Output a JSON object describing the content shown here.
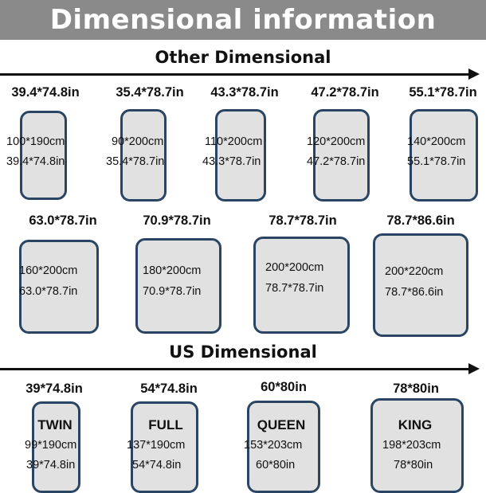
{
  "header": {
    "title": "Dimensional information"
  },
  "other": {
    "title": "Other Dimensional",
    "items": [
      {
        "label": "39.4*74.8in",
        "cm": "100*190cm",
        "in": "39.4*74.8in"
      },
      {
        "label": "35.4*78.7in",
        "cm": "90*200cm",
        "in": "35.4*78.7in"
      },
      {
        "label": "43.3*78.7in",
        "cm": "110*200cm",
        "in": "43.3*78.7in"
      },
      {
        "label": "47.2*78.7in",
        "cm": "120*200cm",
        "in": "47.2*78.7in"
      },
      {
        "label": "55.1*78.7in",
        "cm": "140*200cm",
        "in": "55.1*78.7in"
      },
      {
        "label": "63.0*78.7in",
        "cm": "160*200cm",
        "in": "63.0*78.7in"
      },
      {
        "label": "70.9*78.7in",
        "cm": "180*200cm",
        "in": "70.9*78.7in"
      },
      {
        "label": "78.7*78.7in",
        "cm": "200*200cm",
        "in": "78.7*78.7in"
      },
      {
        "label": "78.7*86.6in",
        "cm": "200*220cm",
        "in": "78.7*86.6in"
      }
    ]
  },
  "us": {
    "title": "US Dimensional",
    "items": [
      {
        "label": "39*74.8in",
        "name": "TWIN",
        "cm": "99*190cm",
        "in": "39*74.8in"
      },
      {
        "label": "54*74.8in",
        "name": "FULL",
        "cm": "137*190cm",
        "in": "54*74.8in"
      },
      {
        "label": "60*80in",
        "name": "QUEEN",
        "cm": "153*203cm",
        "in": "60*80in"
      },
      {
        "label": "78*80in",
        "name": "KING",
        "cm": "198*203cm",
        "in": "78*80in"
      }
    ]
  },
  "colors": {
    "banner": "#8a8a8a",
    "mattress_fill": "#e1e1e1",
    "mattress_border": "#2a4563"
  }
}
